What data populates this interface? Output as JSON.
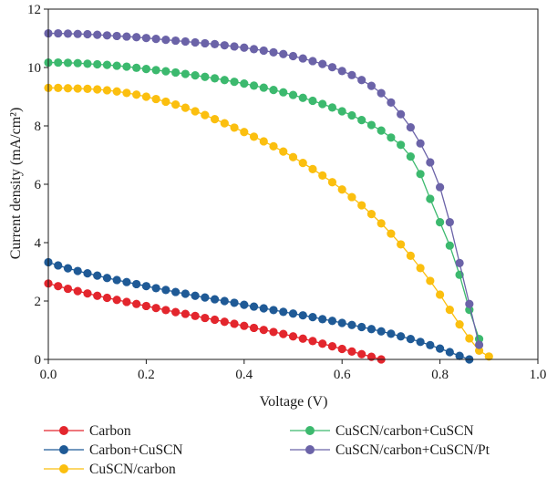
{
  "chart_data": {
    "type": "line",
    "title": "",
    "xlabel": "Voltage (V)",
    "ylabel": "Current density (mA/cm²)",
    "xlim": [
      0,
      1.0
    ],
    "ylim": [
      0,
      12
    ],
    "xticks": [
      "0.0",
      "0.2",
      "0.4",
      "0.6",
      "0.8",
      "1.0"
    ],
    "yticks": [
      "0",
      "2",
      "4",
      "6",
      "8",
      "10",
      "12"
    ],
    "grid": false,
    "legend_position": "bottom",
    "series": [
      {
        "name": "Carbon",
        "color": "#e3262d",
        "x": [
          0.0,
          0.02,
          0.04,
          0.06,
          0.08,
          0.1,
          0.12,
          0.14,
          0.16,
          0.18,
          0.2,
          0.22,
          0.24,
          0.26,
          0.28,
          0.3,
          0.32,
          0.34,
          0.36,
          0.38,
          0.4,
          0.42,
          0.44,
          0.46,
          0.48,
          0.5,
          0.52,
          0.54,
          0.56,
          0.58,
          0.6,
          0.62,
          0.64,
          0.66,
          0.68
        ],
        "y": [
          2.6,
          2.51,
          2.42,
          2.34,
          2.26,
          2.18,
          2.11,
          2.04,
          1.97,
          1.9,
          1.83,
          1.76,
          1.69,
          1.62,
          1.56,
          1.49,
          1.42,
          1.36,
          1.29,
          1.22,
          1.15,
          1.08,
          1.01,
          0.94,
          0.87,
          0.79,
          0.71,
          0.63,
          0.54,
          0.45,
          0.36,
          0.27,
          0.18,
          0.09,
          0.0
        ]
      },
      {
        "name": "Carbon+CuSCN",
        "color": "#1f5a96",
        "x": [
          0.0,
          0.02,
          0.04,
          0.06,
          0.08,
          0.1,
          0.12,
          0.14,
          0.16,
          0.18,
          0.2,
          0.22,
          0.24,
          0.26,
          0.28,
          0.3,
          0.32,
          0.34,
          0.36,
          0.38,
          0.4,
          0.42,
          0.44,
          0.46,
          0.48,
          0.5,
          0.52,
          0.54,
          0.56,
          0.58,
          0.6,
          0.62,
          0.64,
          0.66,
          0.68,
          0.7,
          0.72,
          0.74,
          0.76,
          0.78,
          0.8,
          0.82,
          0.84,
          0.86
        ],
        "y": [
          3.33,
          3.22,
          3.12,
          3.03,
          2.95,
          2.87,
          2.79,
          2.72,
          2.65,
          2.58,
          2.51,
          2.44,
          2.38,
          2.31,
          2.25,
          2.18,
          2.12,
          2.06,
          2.0,
          1.94,
          1.87,
          1.81,
          1.75,
          1.69,
          1.63,
          1.57,
          1.51,
          1.45,
          1.38,
          1.32,
          1.25,
          1.18,
          1.11,
          1.04,
          0.96,
          0.88,
          0.79,
          0.7,
          0.6,
          0.49,
          0.37,
          0.25,
          0.12,
          0.0
        ]
      },
      {
        "name": "CuSCN/carbon",
        "color": "#fbbf0f",
        "x": [
          0.0,
          0.02,
          0.04,
          0.06,
          0.08,
          0.1,
          0.12,
          0.14,
          0.16,
          0.18,
          0.2,
          0.22,
          0.24,
          0.26,
          0.28,
          0.3,
          0.32,
          0.34,
          0.36,
          0.38,
          0.4,
          0.42,
          0.44,
          0.46,
          0.48,
          0.5,
          0.52,
          0.54,
          0.56,
          0.58,
          0.6,
          0.62,
          0.64,
          0.66,
          0.68,
          0.7,
          0.72,
          0.74,
          0.76,
          0.78,
          0.8,
          0.82,
          0.84,
          0.86,
          0.88,
          0.9
        ],
        "y": [
          9.3,
          9.3,
          9.29,
          9.28,
          9.27,
          9.25,
          9.22,
          9.18,
          9.13,
          9.07,
          9.0,
          8.92,
          8.83,
          8.73,
          8.62,
          8.5,
          8.37,
          8.23,
          8.09,
          7.94,
          7.79,
          7.63,
          7.47,
          7.3,
          7.12,
          6.93,
          6.73,
          6.52,
          6.3,
          6.07,
          5.82,
          5.56,
          5.28,
          4.98,
          4.66,
          4.31,
          3.94,
          3.55,
          3.13,
          2.69,
          2.22,
          1.7,
          1.2,
          0.72,
          0.3,
          0.1
        ]
      },
      {
        "name": "CuSCN/carbon+CuSCN",
        "color": "#3cb96e",
        "x": [
          0.0,
          0.02,
          0.04,
          0.06,
          0.08,
          0.1,
          0.12,
          0.14,
          0.16,
          0.18,
          0.2,
          0.22,
          0.24,
          0.26,
          0.28,
          0.3,
          0.32,
          0.34,
          0.36,
          0.38,
          0.4,
          0.42,
          0.44,
          0.46,
          0.48,
          0.5,
          0.52,
          0.54,
          0.56,
          0.58,
          0.6,
          0.62,
          0.64,
          0.66,
          0.68,
          0.7,
          0.72,
          0.74,
          0.76,
          0.78,
          0.8,
          0.82,
          0.84,
          0.86,
          0.88
        ],
        "y": [
          10.17,
          10.17,
          10.16,
          10.15,
          10.13,
          10.11,
          10.09,
          10.06,
          10.03,
          9.99,
          9.95,
          9.91,
          9.87,
          9.83,
          9.78,
          9.73,
          9.68,
          9.63,
          9.57,
          9.51,
          9.45,
          9.38,
          9.31,
          9.23,
          9.15,
          9.06,
          8.96,
          8.86,
          8.75,
          8.63,
          8.5,
          8.36,
          8.2,
          8.03,
          7.84,
          7.6,
          7.35,
          6.95,
          6.35,
          5.5,
          4.7,
          3.9,
          2.9,
          1.7,
          0.7
        ]
      },
      {
        "name": "CuSCN/carbon+CuSCN/Pt",
        "color": "#6b63a8",
        "x": [
          0.0,
          0.02,
          0.04,
          0.06,
          0.08,
          0.1,
          0.12,
          0.14,
          0.16,
          0.18,
          0.2,
          0.22,
          0.24,
          0.26,
          0.28,
          0.3,
          0.32,
          0.34,
          0.36,
          0.38,
          0.4,
          0.42,
          0.44,
          0.46,
          0.48,
          0.5,
          0.52,
          0.54,
          0.56,
          0.58,
          0.6,
          0.62,
          0.64,
          0.66,
          0.68,
          0.7,
          0.72,
          0.74,
          0.76,
          0.78,
          0.8,
          0.82,
          0.84,
          0.86,
          0.88
        ],
        "y": [
          11.17,
          11.17,
          11.16,
          11.15,
          11.14,
          11.12,
          11.1,
          11.08,
          11.06,
          11.04,
          11.01,
          10.98,
          10.95,
          10.92,
          10.89,
          10.86,
          10.83,
          10.8,
          10.76,
          10.72,
          10.68,
          10.63,
          10.58,
          10.52,
          10.46,
          10.39,
          10.31,
          10.22,
          10.12,
          10.01,
          9.88,
          9.74,
          9.57,
          9.37,
          9.12,
          8.8,
          8.4,
          7.95,
          7.4,
          6.75,
          5.9,
          4.7,
          3.3,
          1.9,
          0.5
        ]
      }
    ]
  }
}
